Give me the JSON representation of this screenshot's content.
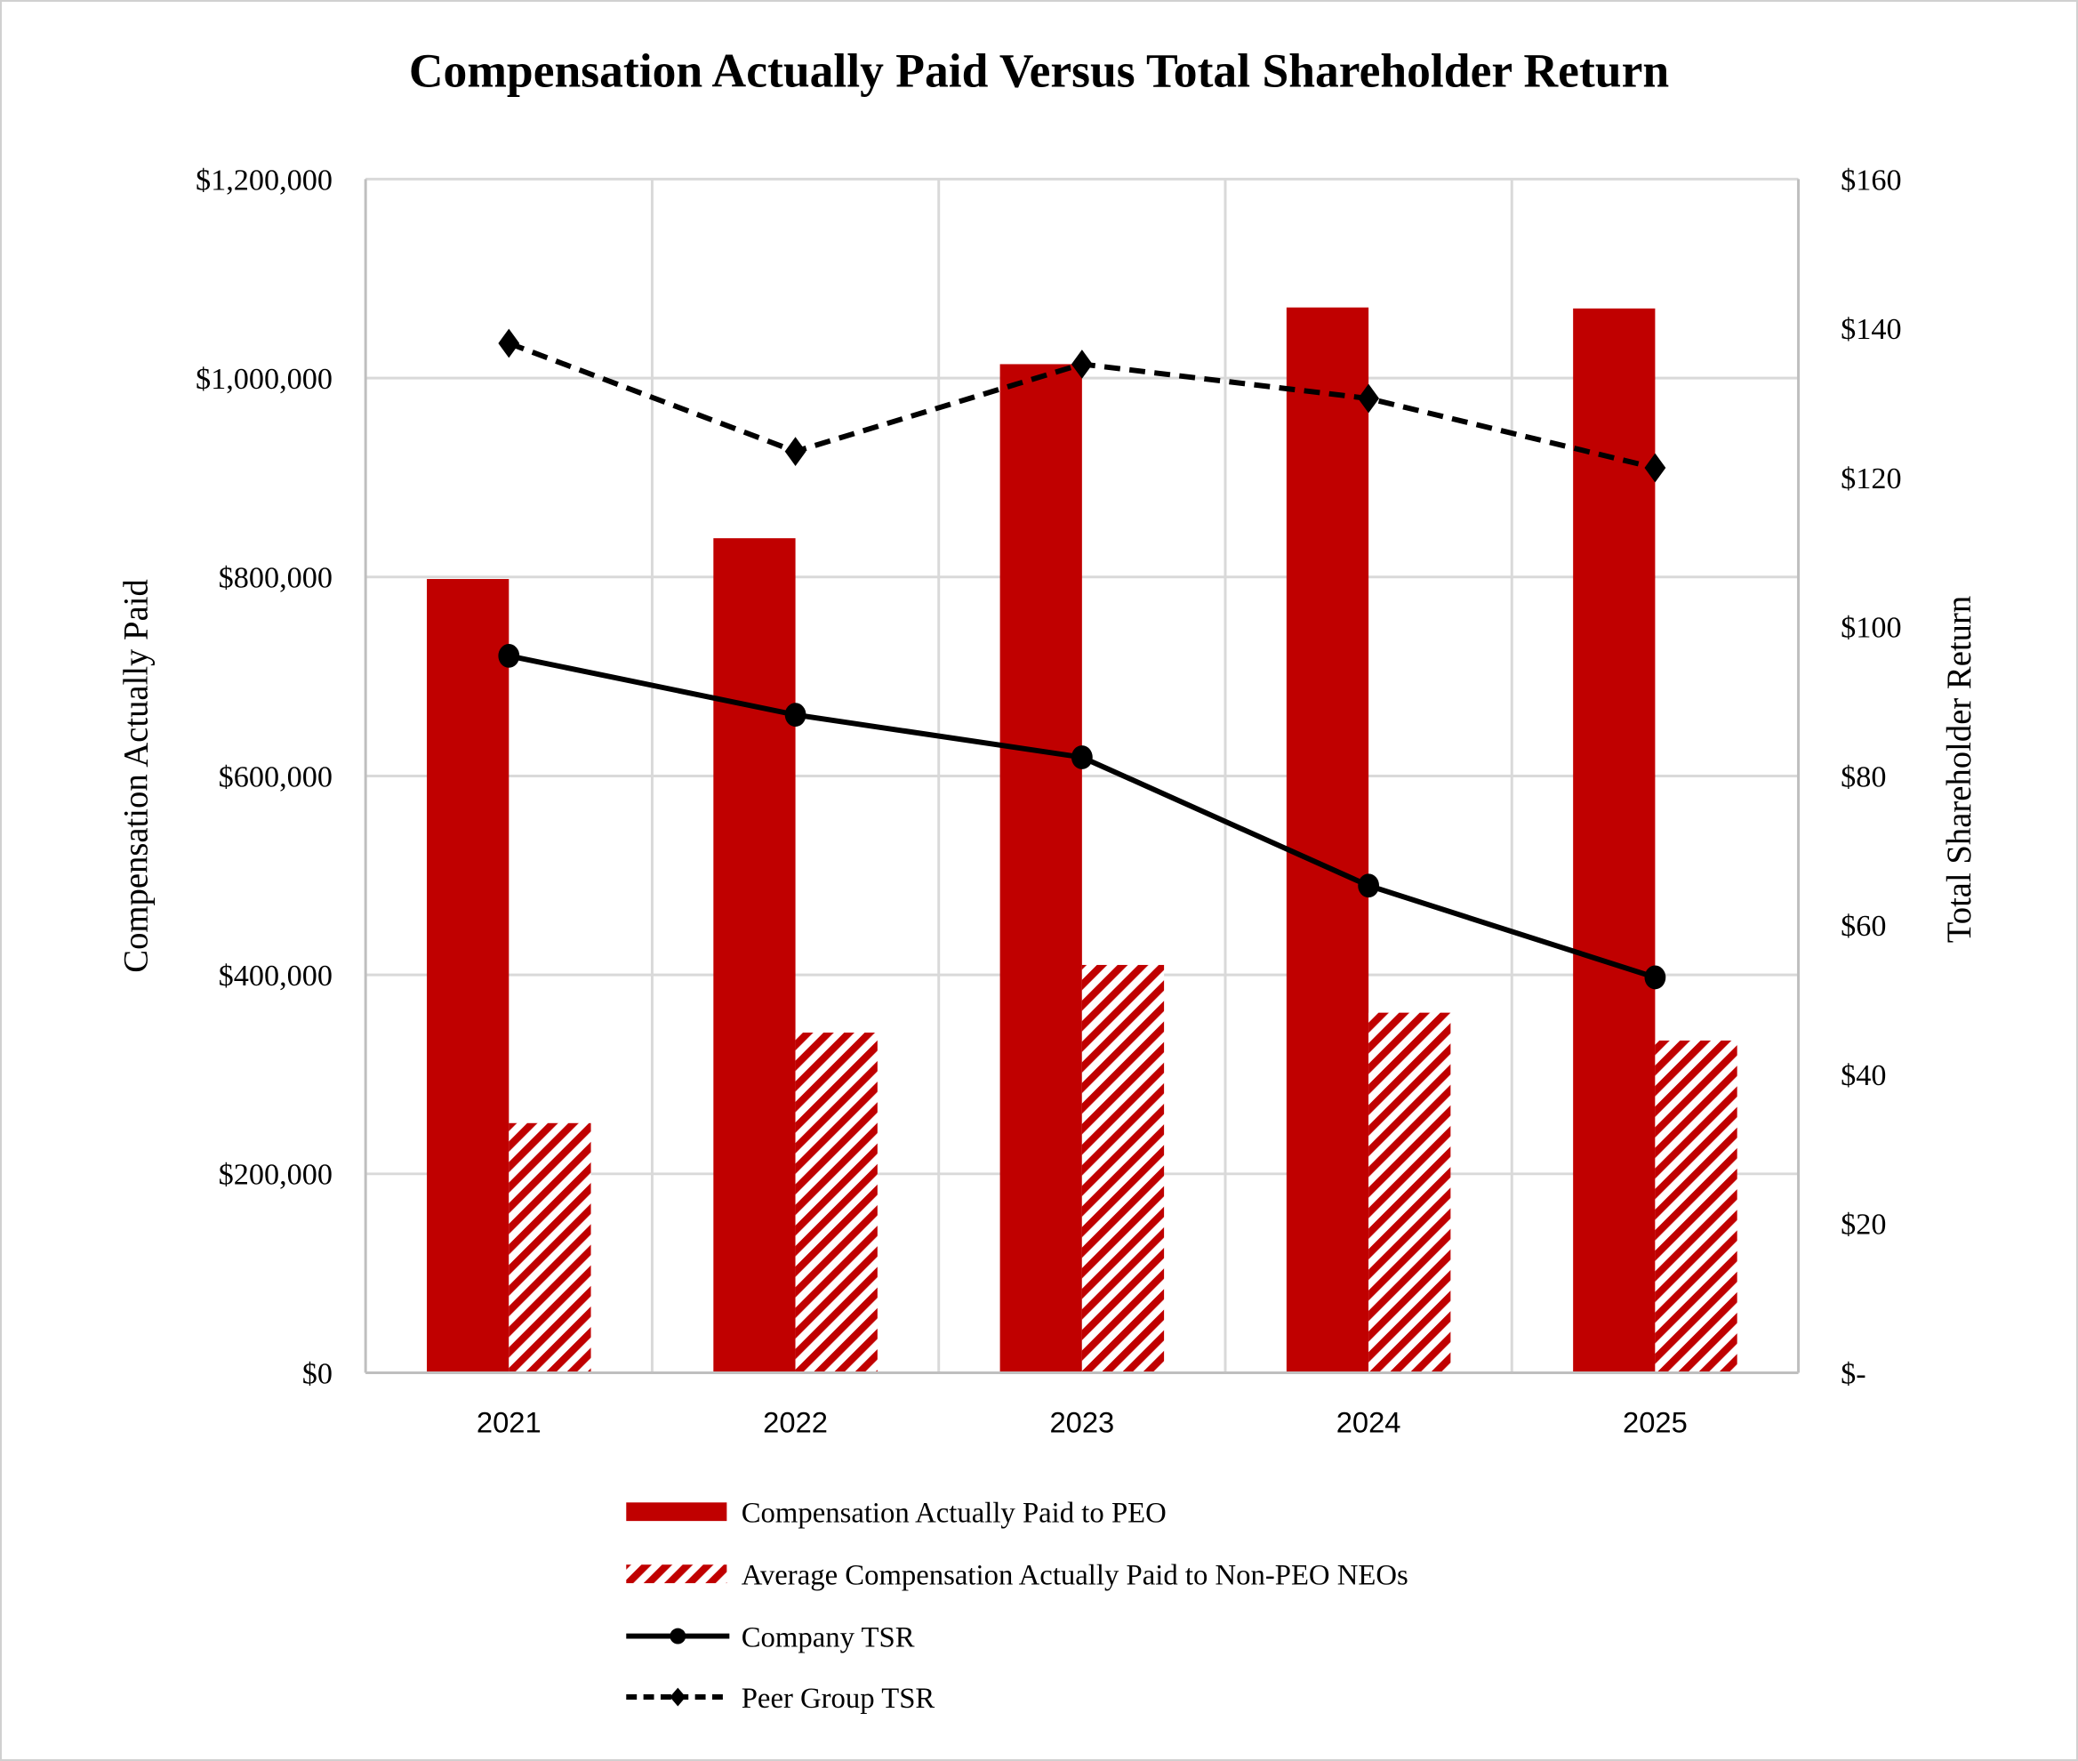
{
  "chart_data": {
    "type": "bar+line",
    "title": "Compensation Actually Paid Versus Total Shareholder Return",
    "ylabel": "Compensation Actually Paid",
    "y2label": "Total Shareholder Return",
    "categories": [
      "2021",
      "2022",
      "2023",
      "2024",
      "2025"
    ],
    "ylim": [
      0,
      1200000
    ],
    "y_ticks": [
      0,
      200000,
      400000,
      600000,
      800000,
      1000000,
      1200000
    ],
    "y_tick_labels": [
      "$0",
      "$200,000",
      "$400,000",
      "$600,000",
      "$800,000",
      "$1,000,000",
      "$1,200,000"
    ],
    "y2lim": [
      0,
      160
    ],
    "y2_ticks": [
      0,
      20,
      40,
      60,
      80,
      100,
      120,
      140,
      160
    ],
    "y2_tick_labels": [
      "$-",
      "$20",
      "$40",
      "$60",
      "$80",
      "$100",
      "$120",
      "$140",
      "$160"
    ],
    "grid": true,
    "legend_position": "bottom",
    "series": [
      {
        "name": "Compensation Actually Paid to PEO",
        "type": "bar",
        "axis": "left",
        "color": "#C00000",
        "fill": "solid",
        "values": [
          798000,
          839000,
          1014000,
          1071000,
          1070000
        ]
      },
      {
        "name": "Average Compensation Actually Paid to Non-PEO NEOs",
        "type": "bar",
        "axis": "left",
        "color": "#C00000",
        "fill": "hatched",
        "values": [
          251000,
          342000,
          410000,
          362000,
          334000
        ]
      },
      {
        "name": "Company TSR",
        "type": "line",
        "axis": "right",
        "color": "#000000",
        "line": "solid",
        "marker": "circle",
        "values": [
          96.1,
          88.2,
          82.5,
          65.3,
          53.0
        ]
      },
      {
        "name": "Peer Group TSR",
        "type": "line",
        "axis": "right",
        "color": "#000000",
        "line": "dashed",
        "marker": "diamond",
        "values": [
          138.0,
          123.5,
          135.2,
          130.6,
          121.3
        ]
      }
    ]
  }
}
